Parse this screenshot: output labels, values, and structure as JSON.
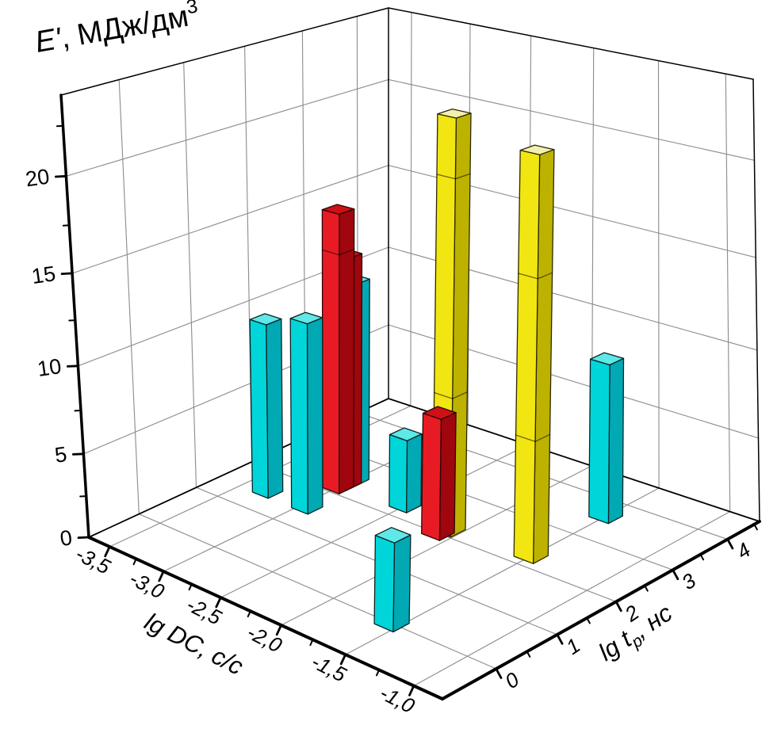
{
  "chart_data": {
    "type": "bar",
    "subtype": "3d-xyz-columns",
    "title": "E', МДж/дм³",
    "background": "#ffffff",
    "grid": true,
    "legend": null,
    "axes": {
      "z": {
        "label": {
          "var": "E'",
          "unit": ", МДж/дм",
          "sup": "3"
        },
        "ticks": [
          0,
          5,
          10,
          15,
          20
        ],
        "tick_labels": [
          "0",
          "5",
          "10",
          "15",
          "20"
        ],
        "minor_ticks": [
          2.5,
          7.5,
          12.5,
          17.5,
          22.5
        ],
        "range": [
          0,
          24
        ]
      },
      "x": {
        "label": {
          "pre": "lg ",
          "var": "DC",
          "unit": ", с/с"
        },
        "ticks": [
          -3.5,
          -3.0,
          -2.5,
          -2.0,
          -1.5,
          -1.0
        ],
        "tick_labels": [
          "-3,5",
          "-3,0",
          "-2,5",
          "-2,0",
          "-1,5",
          "-1,0"
        ],
        "minor_ticks": [
          -3.25,
          -2.75,
          -2.25,
          -1.75,
          -1.25
        ],
        "range": [
          -3.7,
          -0.8
        ]
      },
      "y": {
        "label": {
          "pre": "lg ",
          "var": "t",
          "sub": "p",
          "unit": ", нс"
        },
        "ticks": [
          0,
          1,
          2,
          3,
          4
        ],
        "tick_labels": [
          "0",
          "1",
          "2",
          "3",
          "4"
        ],
        "minor_ticks": [
          0.5,
          1.5,
          2.5,
          3.5,
          4.5
        ],
        "range": [
          -0.85,
          4.6
        ]
      }
    },
    "series": [
      {
        "name": "cyan",
        "colors": {
          "front": "#00d6da",
          "side": "#00a9b4",
          "top": "#5fe8e8",
          "edge": "#0a2324"
        },
        "bars": [
          {
            "x": -3.3,
            "y": 1.5,
            "z": 10.4
          },
          {
            "x": -2.95,
            "y": 1.5,
            "z": 11.2
          },
          {
            "x": -3.0,
            "y": 2.44,
            "z": 12.1
          },
          {
            "x": -2.5,
            "y": 2.3,
            "z": 4.4
          },
          {
            "x": -1.55,
            "y": 0.0,
            "z": 4.9
          },
          {
            "x": -1.5,
            "y": 3.6,
            "z": 9.3
          }
        ]
      },
      {
        "name": "red",
        "colors": {
          "front": "#e81b24",
          "side": "#9f060d",
          "top": "#cf1017",
          "edge": "#2a0506"
        },
        "bars": [
          {
            "x": -3.0,
            "y": 2.16,
            "z": 16.3,
            "marks": [
              14.1
            ]
          },
          {
            "x": -3.0,
            "y": 2.3,
            "z": 13.7
          },
          {
            "x": -2.1,
            "y": 2.0,
            "z": 7.1
          }
        ]
      },
      {
        "name": "yellow",
        "colors": {
          "front": "#f2e612",
          "side": "#bdb200",
          "top": "#f2efb0",
          "edge": "#2b2803"
        },
        "bars": [
          {
            "x": -2.08,
            "y": 2.15,
            "z": 22.7,
            "marks": [
              8.1,
              19.7
            ]
          },
          {
            "x": -1.5,
            "y": 2.25,
            "z": 21.7,
            "marks": [
              7.0,
              15.6
            ]
          }
        ]
      }
    ]
  }
}
